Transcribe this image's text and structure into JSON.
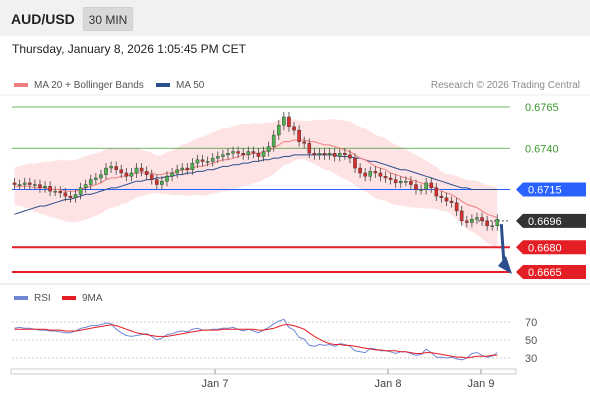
{
  "header": {
    "symbol": "AUD/USD",
    "timeframe": "30 MIN"
  },
  "datetime": "Thursday, January 8, 2026 1:05:45 PM CET",
  "legend": {
    "ma20_label": "MA 20 + Bollinger Bands",
    "ma50_label": "MA 50",
    "credit": "Research © 2026 Trading Central",
    "ma20_color": "#f08080",
    "ma50_color": "#2b4f8c"
  },
  "rsi_legend": {
    "rsi_label": "RSI",
    "ma_label": "9MA",
    "rsi_color": "#6f86d6",
    "ma_color": "#e31e24"
  },
  "levels": [
    {
      "value": "0.6765",
      "role": "resistance",
      "color": "#3c9a2f"
    },
    {
      "value": "0.6740",
      "role": "resistance",
      "color": "#3c9a2f"
    },
    {
      "value": "0.6715",
      "role": "pivot",
      "color": "#2962ff"
    },
    {
      "value": "0.6696",
      "role": "last",
      "color": "#333333"
    },
    {
      "value": "0.6680",
      "role": "support",
      "color": "#e31e24"
    },
    {
      "value": "0.6665",
      "role": "support",
      "color": "#e31e24"
    }
  ],
  "rsi_ticks": [
    "70",
    "50",
    "30"
  ],
  "x_ticks": [
    "Jan 7",
    "Jan 8",
    "Jan 9"
  ],
  "chart_data": {
    "type": "candlestick",
    "title": "",
    "ylim": [
      0.6659,
      0.6771
    ],
    "candles_close": [
      0.6718,
      0.6718,
      0.6719,
      0.6718,
      0.6718,
      0.6716,
      0.6717,
      0.6714,
      0.6714,
      0.6713,
      0.6711,
      0.671,
      0.6712,
      0.6716,
      0.6718,
      0.6721,
      0.6722,
      0.6724,
      0.6728,
      0.6729,
      0.6727,
      0.6725,
      0.6723,
      0.6725,
      0.6728,
      0.6726,
      0.6724,
      0.6721,
      0.6718,
      0.672,
      0.6723,
      0.6725,
      0.6727,
      0.6728,
      0.6727,
      0.6731,
      0.6733,
      0.6732,
      0.6732,
      0.6734,
      0.6735,
      0.6736,
      0.6737,
      0.6738,
      0.6737,
      0.6736,
      0.6738,
      0.6737,
      0.6735,
      0.6738,
      0.6741,
      0.6748,
      0.6754,
      0.6759,
      0.6753,
      0.6751,
      0.6744,
      0.6743,
      0.6737,
      0.6736,
      0.6737,
      0.6736,
      0.6737,
      0.6735,
      0.6737,
      0.6736,
      0.6734,
      0.6728,
      0.6725,
      0.6723,
      0.6726,
      0.6725,
      0.6723,
      0.6722,
      0.6721,
      0.6719,
      0.672,
      0.672,
      0.6718,
      0.6715,
      0.6715,
      0.6719,
      0.6716,
      0.6711,
      0.671,
      0.6708,
      0.6707,
      0.6702,
      0.6696,
      0.6695,
      0.6697,
      0.6698,
      0.6696,
      0.6693,
      0.6693,
      0.6697
    ],
    "ma20": [
      0.6717,
      0.6717,
      0.6717,
      0.6717,
      0.6716,
      0.6716,
      0.6716,
      0.6715,
      0.6715,
      0.6715,
      0.6714,
      0.6714,
      0.6714,
      0.6715,
      0.6716,
      0.6717,
      0.6718,
      0.6719,
      0.6721,
      0.6722,
      0.6722,
      0.6723,
      0.6723,
      0.6724,
      0.6725,
      0.6725,
      0.6725,
      0.6725,
      0.6724,
      0.6724,
      0.6725,
      0.6725,
      0.6726,
      0.6727,
      0.6727,
      0.6728,
      0.6729,
      0.6729,
      0.673,
      0.6731,
      0.6732,
      0.6733,
      0.6733,
      0.6734,
      0.6735,
      0.6736,
      0.6736,
      0.6737,
      0.6737,
      0.6738,
      0.6739,
      0.674,
      0.6742,
      0.6744,
      0.6744,
      0.6745,
      0.6745,
      0.6745,
      0.6744,
      0.6744,
      0.6743,
      0.6742,
      0.6742,
      0.6741,
      0.674,
      0.6739,
      0.6738,
      0.6736,
      0.6734,
      0.6733,
      0.6731,
      0.6729,
      0.6728,
      0.6727,
      0.6725,
      0.6724,
      0.6723,
      0.6722,
      0.6721,
      0.672,
      0.6719,
      0.6718,
      0.6717,
      0.6716,
      0.6714,
      0.6713,
      0.6712,
      0.671,
      0.6708,
      0.6706,
      0.6705,
      0.6704,
      0.6702,
      0.67,
      0.6699,
      0.6698
    ],
    "ma50": [
      0.67,
      0.6701,
      0.6702,
      0.6703,
      0.6704,
      0.6705,
      0.6705,
      0.6706,
      0.6707,
      0.6708,
      0.6709,
      0.6709,
      0.671,
      0.6711,
      0.6712,
      0.6712,
      0.6713,
      0.6714,
      0.6715,
      0.6716,
      0.6716,
      0.6717,
      0.6718,
      0.6719,
      0.672,
      0.672,
      0.6721,
      0.6721,
      0.6722,
      0.6722,
      0.6723,
      0.6723,
      0.6724,
      0.6724,
      0.6725,
      0.6725,
      0.6726,
      0.6726,
      0.6727,
      0.6727,
      0.6728,
      0.6729,
      0.6729,
      0.673,
      0.673,
      0.6731,
      0.6731,
      0.6732,
      0.6732,
      0.6733,
      0.6733,
      0.6734,
      0.6734,
      0.6735,
      0.6735,
      0.6736,
      0.6736,
      0.6736,
      0.6736,
      0.6736,
      0.6736,
      0.6736,
      0.6736,
      0.6736,
      0.6735,
      0.6735,
      0.6735,
      0.6734,
      0.6734,
      0.6733,
      0.6732,
      0.6732,
      0.6731,
      0.673,
      0.6729,
      0.6728,
      0.6727,
      0.6727,
      0.6726,
      0.6725,
      0.6724,
      0.6723,
      0.6722,
      0.6721,
      0.672,
      0.6719,
      0.6718,
      0.6717,
      0.6716,
      0.6716,
      0.6715,
      0.6715,
      0.6715,
      0.6715,
      0.6715,
      0.6715
    ],
    "rsi": [
      63,
      64,
      63,
      63,
      62,
      61,
      61,
      60,
      60,
      59,
      58,
      58,
      60,
      63,
      64,
      66,
      66,
      67,
      69,
      68,
      62,
      58,
      55,
      54,
      55,
      56,
      57,
      54,
      50,
      52,
      56,
      57,
      59,
      60,
      59,
      62,
      63,
      61,
      61,
      62,
      62,
      63,
      63,
      64,
      62,
      60,
      62,
      60,
      58,
      61,
      64,
      68,
      71,
      73,
      64,
      61,
      53,
      51,
      44,
      43,
      45,
      44,
      45,
      43,
      46,
      45,
      43,
      38,
      37,
      36,
      41,
      40,
      38,
      38,
      37,
      35,
      37,
      37,
      35,
      33,
      34,
      40,
      36,
      31,
      31,
      30,
      31,
      29,
      28,
      30,
      35,
      36,
      33,
      31,
      32,
      36
    ],
    "rsi_ma": [
      62,
      62,
      62,
      62,
      62,
      62,
      62,
      61,
      61,
      61,
      60,
      60,
      60,
      61,
      62,
      63,
      64,
      65,
      66,
      67,
      66,
      64,
      62,
      60,
      58,
      57,
      56,
      55,
      54,
      54,
      54,
      55,
      56,
      57,
      58,
      59,
      60,
      61,
      61,
      61,
      61,
      62,
      62,
      62,
      62,
      62,
      62,
      62,
      61,
      61,
      62,
      63,
      65,
      67,
      67,
      66,
      64,
      62,
      58,
      54,
      51,
      48,
      46,
      45,
      45,
      44,
      44,
      43,
      42,
      41,
      40,
      39,
      39,
      38,
      38,
      38,
      37,
      37,
      36,
      35,
      35,
      36,
      36,
      35,
      34,
      33,
      32,
      31,
      31,
      30,
      31,
      32,
      32,
      32,
      33,
      33
    ],
    "rsi_ylim": [
      20,
      80
    ]
  }
}
